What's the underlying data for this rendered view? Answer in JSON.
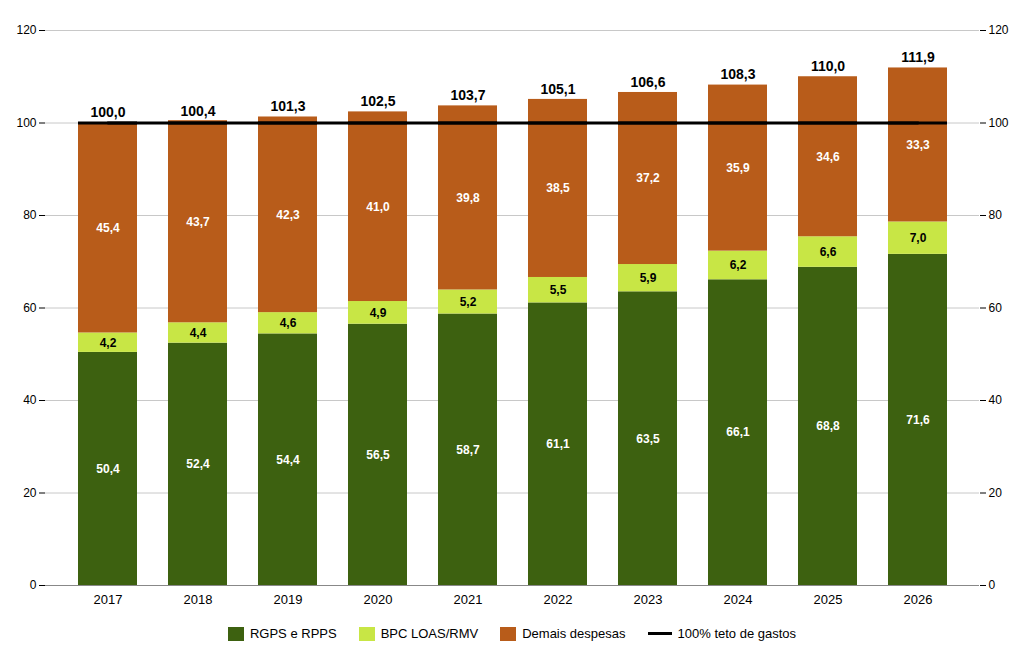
{
  "chart_data": {
    "type": "bar",
    "stacked": true,
    "categories": [
      "2017",
      "2018",
      "2019",
      "2020",
      "2021",
      "2022",
      "2023",
      "2024",
      "2025",
      "2026"
    ],
    "series": [
      {
        "name": "RGPS e RPPS",
        "type": "bar",
        "color": "#3d6110",
        "values": [
          50.4,
          52.4,
          54.4,
          56.5,
          58.7,
          61.1,
          63.5,
          66.1,
          68.8,
          71.6
        ],
        "value_labels": [
          "50,4",
          "52,4",
          "54,4",
          "56,5",
          "58,7",
          "61,1",
          "63,5",
          "66,1",
          "68,8",
          "71,6"
        ]
      },
      {
        "name": "BPC LOAS/RMV",
        "type": "bar",
        "color": "#c8e645",
        "values": [
          4.2,
          4.4,
          4.6,
          4.9,
          5.2,
          5.5,
          5.9,
          6.2,
          6.6,
          7.0
        ],
        "value_labels": [
          "4,2",
          "4,4",
          "4,6",
          "4,9",
          "5,2",
          "5,5",
          "5,9",
          "6,2",
          "6,6",
          "7,0"
        ]
      },
      {
        "name": "Demais despesas",
        "type": "bar",
        "color": "#b85c1a",
        "values": [
          45.4,
          43.7,
          42.3,
          41.0,
          39.8,
          38.5,
          37.2,
          35.9,
          34.6,
          33.3
        ],
        "value_labels": [
          "45,4",
          "43,7",
          "42,3",
          "41,0",
          "39,8",
          "38,5",
          "37,2",
          "35,9",
          "34,6",
          "33,3"
        ]
      },
      {
        "name": "100% teto de gastos",
        "type": "line",
        "color": "#000000",
        "values": [
          100,
          100,
          100,
          100,
          100,
          100,
          100,
          100,
          100,
          100
        ]
      }
    ],
    "totals": [
      100.0,
      100.4,
      101.3,
      102.5,
      103.7,
      105.1,
      106.6,
      108.3,
      110.0,
      111.9
    ],
    "total_labels": [
      "100,0",
      "100,4",
      "101,3",
      "102,5",
      "103,7",
      "105,1",
      "106,6",
      "108,3",
      "110,0",
      "111,9"
    ],
    "data_labels": true,
    "ylim": [
      0,
      120
    ],
    "yticks": [
      0,
      20,
      40,
      60,
      80,
      100,
      120
    ],
    "y2lim": [
      0,
      120
    ],
    "y2ticks": [
      0,
      20,
      40,
      60,
      80,
      100,
      120
    ],
    "grid": true,
    "legend": "bottom"
  }
}
